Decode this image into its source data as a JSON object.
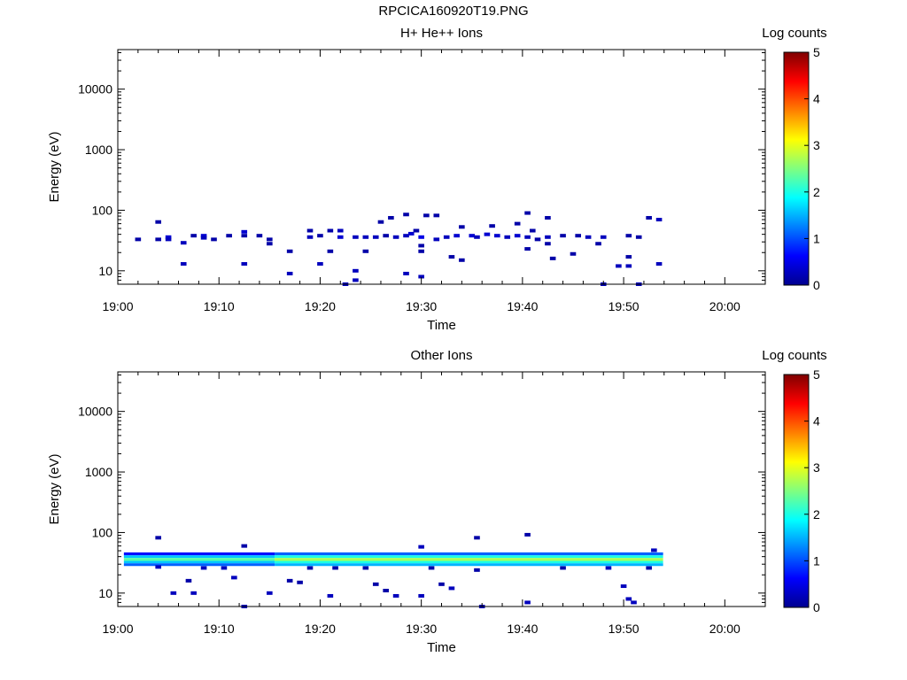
{
  "figure_title": "RPCICA160920T19.PNG",
  "colorbar": {
    "label": "Log counts",
    "ticks": [
      "0",
      "1",
      "2",
      "3",
      "4",
      "5"
    ],
    "range": [
      0,
      5
    ],
    "colormap": "jet"
  },
  "chart_data": [
    {
      "type": "heatmap",
      "title": "H+ He++ Ions",
      "xlabel": "Time",
      "ylabel": "Energy (eV)",
      "y_scale": "log",
      "ylim": [
        6,
        45000
      ],
      "xlim_minutes": [
        0,
        64
      ],
      "x_ticks": [
        "19:00",
        "19:10",
        "19:20",
        "19:30",
        "19:40",
        "19:50",
        "20:00"
      ],
      "y_ticks": [
        "10",
        "100",
        "1000",
        "10000"
      ],
      "cells": [
        [
          2,
          33,
          0.2
        ],
        [
          4,
          64,
          0.2
        ],
        [
          4,
          33,
          0.2
        ],
        [
          5,
          36,
          0.4
        ],
        [
          5,
          33,
          0.3
        ],
        [
          6.5,
          29,
          0.3
        ],
        [
          6.5,
          13,
          0.3
        ],
        [
          7.5,
          38,
          0.2
        ],
        [
          8.5,
          38,
          0.4
        ],
        [
          8.5,
          35,
          0.3
        ],
        [
          9.5,
          33,
          0.2
        ],
        [
          11,
          38,
          0.2
        ],
        [
          12.5,
          44,
          0.4
        ],
        [
          12.5,
          38,
          0.2
        ],
        [
          12.5,
          13,
          0.3
        ],
        [
          14,
          38,
          0.2
        ],
        [
          15,
          33,
          0.2
        ],
        [
          15,
          28,
          0.2
        ],
        [
          17,
          21,
          0.2
        ],
        [
          17,
          9,
          0.3
        ],
        [
          19,
          46,
          0.2
        ],
        [
          19,
          36,
          0.3
        ],
        [
          20,
          38,
          0.2
        ],
        [
          20,
          13,
          0.3
        ],
        [
          21,
          21,
          0.2
        ],
        [
          21,
          46,
          0.2
        ],
        [
          22,
          46,
          0.3
        ],
        [
          22,
          36,
          0.4
        ],
        [
          22.5,
          6,
          0.3
        ],
        [
          23.5,
          36,
          0.3
        ],
        [
          23.5,
          10,
          0.3
        ],
        [
          23.5,
          7,
          0.3
        ],
        [
          24.5,
          36,
          0.3
        ],
        [
          24.5,
          21,
          0.2
        ],
        [
          25.5,
          36,
          0.3
        ],
        [
          26,
          64,
          0.2
        ],
        [
          26.5,
          38,
          0.2
        ],
        [
          27,
          75,
          0.2
        ],
        [
          27.5,
          36,
          0.3
        ],
        [
          28.5,
          38,
          0.3
        ],
        [
          28.5,
          85,
          0.2
        ],
        [
          29,
          41,
          0.4
        ],
        [
          28.5,
          9,
          0.3
        ],
        [
          29.5,
          46,
          0.2
        ],
        [
          30,
          36,
          0.5
        ],
        [
          30,
          26,
          0.2
        ],
        [
          30,
          21,
          0.2
        ],
        [
          30,
          8,
          0.3
        ],
        [
          30.5,
          82,
          0.2
        ],
        [
          31.5,
          82,
          0.2
        ],
        [
          31.5,
          33,
          0.3
        ],
        [
          32.5,
          36,
          0.3
        ],
        [
          33,
          17,
          0.2
        ],
        [
          33.5,
          38,
          0.4
        ],
        [
          34,
          53,
          0.2
        ],
        [
          34,
          15,
          0.2
        ],
        [
          35,
          38,
          0.4
        ],
        [
          35.5,
          36,
          0.3
        ],
        [
          36.5,
          40,
          0.4
        ],
        [
          37,
          55,
          0.2
        ],
        [
          37.5,
          38,
          0.4
        ],
        [
          38.5,
          36,
          0.3
        ],
        [
          39.5,
          60,
          0.2
        ],
        [
          39.5,
          38,
          0.4
        ],
        [
          40.5,
          90,
          0.2
        ],
        [
          40.5,
          36,
          0.3
        ],
        [
          40.5,
          23,
          0.2
        ],
        [
          41,
          46,
          0.2
        ],
        [
          41.5,
          33,
          0.2
        ],
        [
          42.5,
          75,
          0.2
        ],
        [
          42.5,
          36,
          0.3
        ],
        [
          42.5,
          28,
          0.2
        ],
        [
          43,
          16,
          0.2
        ],
        [
          44,
          38,
          0.2
        ],
        [
          45,
          19,
          0.2
        ],
        [
          45.5,
          38,
          0.2
        ],
        [
          46.5,
          36,
          0.3
        ],
        [
          47.5,
          28,
          0.2
        ],
        [
          48,
          36,
          0.3
        ],
        [
          48,
          6,
          0.3
        ],
        [
          49.5,
          12,
          0.3
        ],
        [
          50.5,
          38,
          0.2
        ],
        [
          50.5,
          17,
          0.2
        ],
        [
          50.5,
          12,
          0.3
        ],
        [
          51.5,
          36,
          0.2
        ],
        [
          51.5,
          6,
          0.3
        ],
        [
          52.5,
          75,
          0.2
        ],
        [
          53.5,
          70,
          0.3
        ],
        [
          53.5,
          13,
          0.3
        ]
      ]
    },
    {
      "type": "heatmap",
      "title": "Other Ions",
      "xlabel": "Time",
      "ylabel": "Energy (eV)",
      "y_scale": "log",
      "ylim": [
        6,
        45000
      ],
      "xlim_minutes": [
        0,
        64
      ],
      "x_ticks": [
        "19:00",
        "19:10",
        "19:20",
        "19:30",
        "19:40",
        "19:50",
        "20:00"
      ],
      "y_ticks": [
        "10",
        "100",
        "1000",
        "10000"
      ],
      "band": {
        "t_start": 0.6,
        "t_end": 53.9,
        "rows": [
          {
            "e_low": 42,
            "e_high": 47,
            "level": 0.7
          },
          {
            "e_low": 38,
            "e_high": 42,
            "level": 1.6
          },
          {
            "e_low": 34,
            "e_high": 38,
            "level": 2.3
          },
          {
            "e_low": 31,
            "e_high": 34,
            "level": 1.6
          },
          {
            "e_low": 28,
            "e_high": 31,
            "level": 1.1
          }
        ],
        "bright_start": 15.5,
        "bright_level_delta": 0.4
      },
      "cells": [
        [
          4,
          82,
          0.2
        ],
        [
          4,
          27,
          0.3
        ],
        [
          5.5,
          10,
          0.3
        ],
        [
          7,
          16,
          0.2
        ],
        [
          7.5,
          10,
          0.3
        ],
        [
          8.5,
          26,
          0.3
        ],
        [
          10.5,
          26,
          0.3
        ],
        [
          11.5,
          18,
          0.3
        ],
        [
          12.5,
          60,
          0.2
        ],
        [
          12.5,
          6,
          0.3
        ],
        [
          15,
          10,
          0.3
        ],
        [
          17,
          16,
          0.2
        ],
        [
          18,
          15,
          0.2
        ],
        [
          19,
          26,
          0.2
        ],
        [
          21,
          9,
          0.3
        ],
        [
          21.5,
          26,
          0.2
        ],
        [
          24.5,
          26,
          0.2
        ],
        [
          25.5,
          14,
          0.2
        ],
        [
          26.5,
          11,
          0.2
        ],
        [
          27.5,
          9,
          0.3
        ],
        [
          30,
          58,
          0.3
        ],
        [
          30,
          9,
          0.3
        ],
        [
          31,
          26,
          0.2
        ],
        [
          32,
          14,
          0.2
        ],
        [
          33,
          12,
          0.3
        ],
        [
          35.5,
          82,
          0.2
        ],
        [
          35.5,
          24,
          0.2
        ],
        [
          36,
          6,
          0.3
        ],
        [
          40.5,
          92,
          0.2
        ],
        [
          40.5,
          7,
          0.3
        ],
        [
          44,
          26,
          0.2
        ],
        [
          48.5,
          26,
          0.3
        ],
        [
          50,
          13,
          0.3
        ],
        [
          50.5,
          8,
          0.3
        ],
        [
          51,
          7,
          0.3
        ],
        [
          52.5,
          26,
          0.2
        ],
        [
          53,
          51,
          0.3
        ]
      ]
    }
  ]
}
